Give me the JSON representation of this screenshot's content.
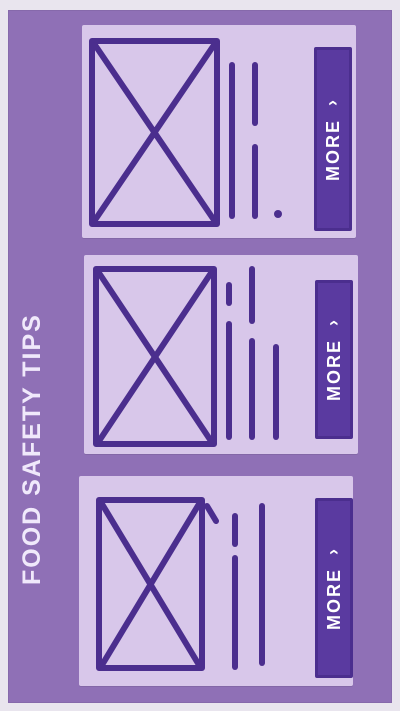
{
  "screen": {
    "title": "FOOD SAFETY TIPS"
  },
  "cards": [
    {
      "button_label": "MORE",
      "button_icon": "chevron-right-icon"
    },
    {
      "button_label": "MORE",
      "button_icon": "chevron-right-icon"
    },
    {
      "button_label": "MORE",
      "button_icon": "chevron-right-icon"
    }
  ],
  "colors": {
    "board": "#8f70b6",
    "card": "#d8c7ea",
    "ink": "#4b2e8e",
    "button": "#5a3aa0"
  }
}
